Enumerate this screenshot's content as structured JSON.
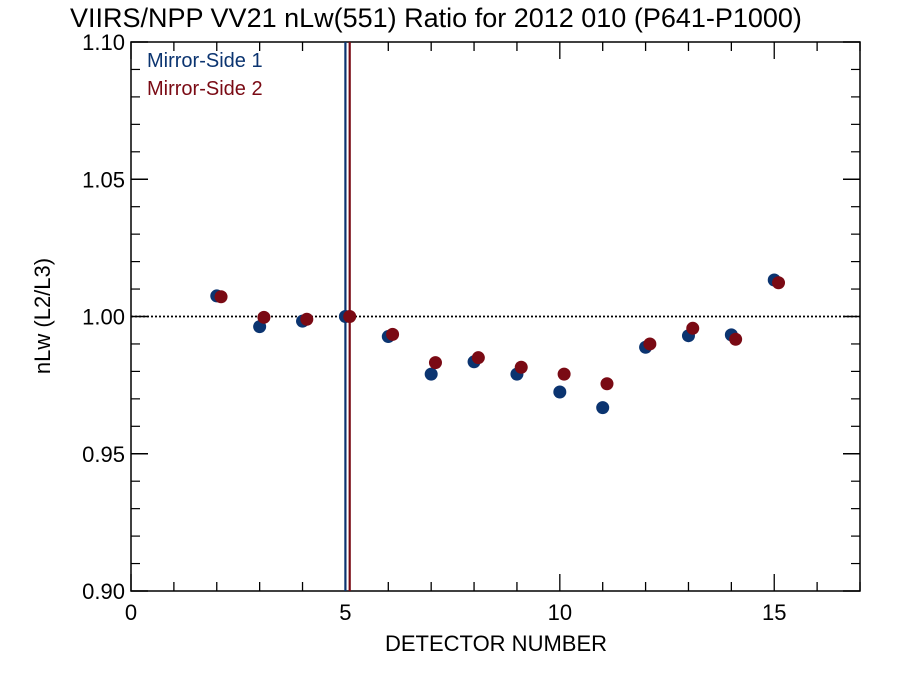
{
  "chart_data": {
    "type": "scatter",
    "title": "VIIRS/NPP VV21 nLw(551) Ratio for 2012 010 (P641-P1000)",
    "xlabel": "DETECTOR NUMBER",
    "ylabel": "nLw (L2/L3)",
    "xlim": [
      0,
      17
    ],
    "ylim": [
      0.9,
      1.1
    ],
    "xticks": [
      0,
      5,
      10,
      15
    ],
    "xtick_labels": [
      "0",
      "5",
      "10",
      "15"
    ],
    "yticks": [
      0.9,
      0.95,
      1.0,
      1.05,
      1.1
    ],
    "ytick_labels": [
      "0.90",
      "0.95",
      "1.00",
      "1.05",
      "1.10"
    ],
    "reference_line_y": 1.0,
    "legend_position": "top-left",
    "series": [
      {
        "name": "Mirror-Side 1",
        "color": "#0b3470",
        "x": [
          2,
          3,
          4,
          5,
          6,
          7,
          8,
          9,
          10,
          11,
          12,
          13,
          14,
          15
        ],
        "y": [
          1.0075,
          0.9963,
          0.9983,
          1.0,
          0.9927,
          0.979,
          0.9835,
          0.979,
          0.9725,
          0.9668,
          0.9888,
          0.993,
          0.9933,
          1.0133
        ],
        "vline_x": 5.0
      },
      {
        "name": "Mirror-Side 2",
        "color": "#7a0a14",
        "x": [
          2.1,
          3.1,
          4.1,
          5.1,
          6.1,
          7.1,
          8.1,
          9.1,
          10.1,
          11.1,
          12.1,
          13.1,
          14.1,
          15.1
        ],
        "y": [
          1.0072,
          0.9997,
          0.999,
          1.0,
          0.9935,
          0.9832,
          0.985,
          0.9815,
          0.979,
          0.9755,
          0.99,
          0.9957,
          0.9917,
          1.0123
        ],
        "vline_x": 5.1
      }
    ]
  }
}
